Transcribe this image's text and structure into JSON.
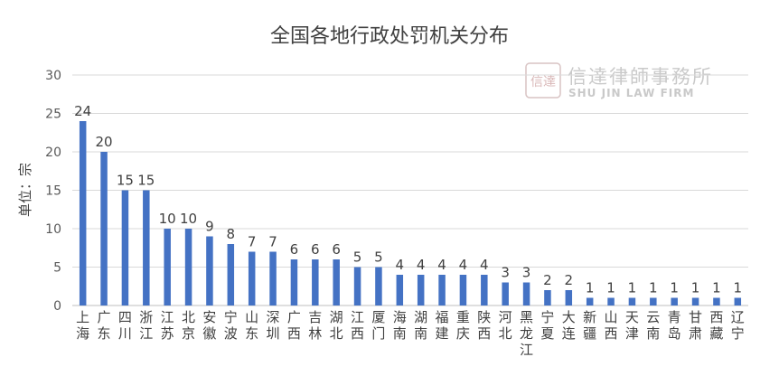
{
  "chart_data": {
    "type": "bar",
    "title": "全国各地行政处罚机关分布",
    "ylabel": "单位：宗",
    "ylim": [
      0,
      30
    ],
    "yticks": [
      0,
      5,
      10,
      15,
      20,
      25,
      30
    ],
    "grid": true,
    "bar_color": "#4472c4",
    "categories": [
      "上海",
      "广东",
      "四川",
      "浙江",
      "江苏",
      "北京",
      "安徽",
      "宁波",
      "山东",
      "深圳",
      "广西",
      "吉林",
      "湖北",
      "江西",
      "厦门",
      "海南",
      "湖南",
      "福建",
      "重庆",
      "陕西",
      "河北",
      "黑龙江",
      "宁夏",
      "大连",
      "新疆",
      "山西",
      "天津",
      "云南",
      "青岛",
      "甘肃",
      "西藏",
      "辽宁"
    ],
    "values": [
      24,
      20,
      15,
      15,
      10,
      10,
      9,
      8,
      7,
      7,
      6,
      6,
      6,
      5,
      5,
      4,
      4,
      4,
      4,
      4,
      3,
      3,
      2,
      2,
      1,
      1,
      1,
      1,
      1,
      1,
      1,
      1
    ]
  },
  "watermark": {
    "seal_text": "信達",
    "name_cn": "信達律師事務所",
    "name_en": "SHU JIN LAW FIRM",
    "color": "#c9c9c9"
  }
}
